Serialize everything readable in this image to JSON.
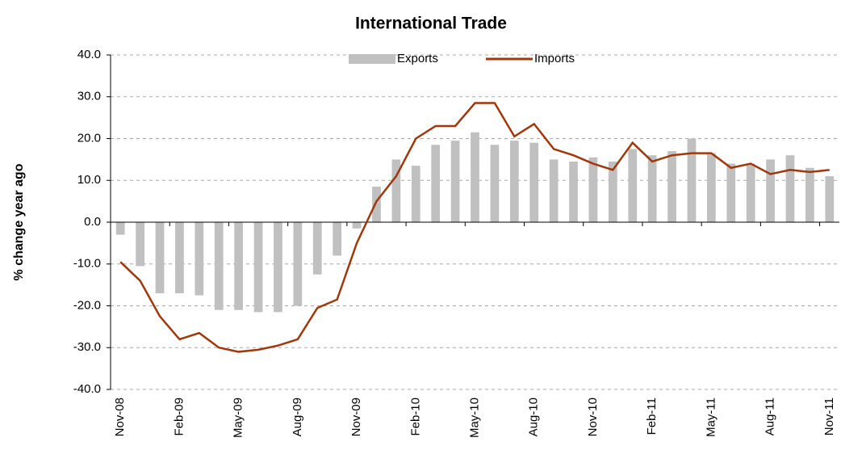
{
  "chart_data": {
    "type": "bar_line",
    "title": "International Trade",
    "y_label": "% change year ago",
    "categories": [
      "Nov-08",
      null,
      null,
      "Feb-09",
      null,
      null,
      "May-09",
      null,
      null,
      "Aug-09",
      null,
      null,
      "Nov-09",
      null,
      null,
      "Feb-10",
      null,
      null,
      "May-10",
      null,
      null,
      "Aug-10",
      null,
      null,
      "Nov-10",
      null,
      null,
      "Feb-11",
      null,
      null,
      "May-11",
      null,
      null,
      "Aug-11",
      null,
      null,
      "Nov-11"
    ],
    "series": [
      {
        "name": "Exports",
        "type": "bar",
        "color": "#c0c0c0",
        "values": [
          -3,
          -10.5,
          -17,
          -17,
          -17.5,
          -21,
          -21,
          -21.5,
          -21.5,
          -20,
          -12.5,
          -8,
          -1.5,
          8.5,
          15,
          13.5,
          18.5,
          19.5,
          21.5,
          18.5,
          19.5,
          19,
          15,
          14.5,
          15.5,
          14.5,
          17.5,
          16,
          17,
          20,
          16.5,
          14,
          14,
          15,
          16,
          13,
          11
        ]
      },
      {
        "name": "Imports",
        "type": "line",
        "color": "#a0380c",
        "values": [
          -9.5,
          -14,
          -22.5,
          -28,
          -26.5,
          -30,
          -31,
          -30.5,
          -29.5,
          -28,
          -20.5,
          -18.5,
          -5,
          5,
          11,
          20,
          23,
          23,
          28.5,
          28.5,
          20.5,
          23.5,
          17.5,
          16,
          14,
          12.5,
          19,
          14.5,
          16,
          16.5,
          16.5,
          13,
          14,
          11.5,
          12.5,
          12,
          12.5
        ]
      }
    ],
    "ylim": [
      -40,
      40
    ],
    "yticks": [
      {
        "value": -40,
        "label": "-40.0"
      },
      {
        "value": -30,
        "label": "-30.0"
      },
      {
        "value": -20,
        "label": "-20.0"
      },
      {
        "value": -10,
        "label": "-10.0"
      },
      {
        "value": 0,
        "label": "0.0"
      },
      {
        "value": 10,
        "label": "10.0"
      },
      {
        "value": 20,
        "label": "20.0"
      },
      {
        "value": 30,
        "label": "30.0"
      },
      {
        "value": 40,
        "label": "40.0"
      }
    ],
    "grid": true,
    "legend": "top"
  }
}
